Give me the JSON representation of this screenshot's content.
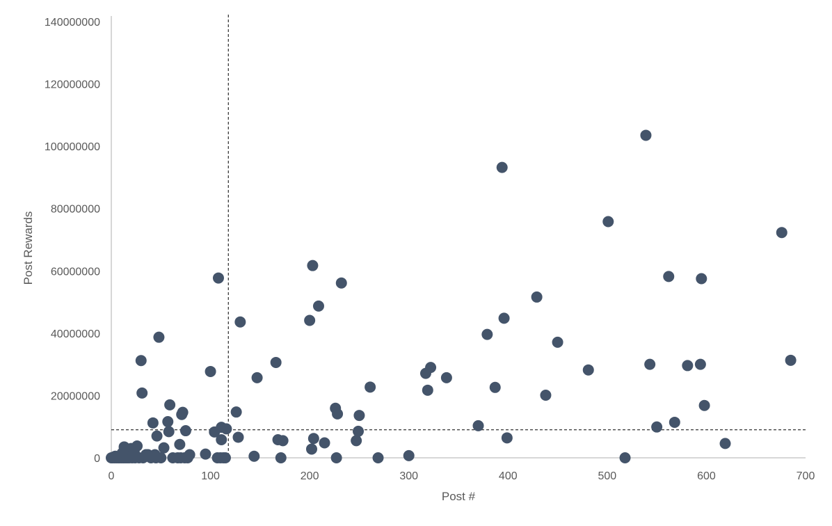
{
  "chart_data": {
    "type": "scatter",
    "title": "",
    "xlabel": "Post #",
    "ylabel": "Post Rewards",
    "xlim": [
      0,
      700
    ],
    "ylim": [
      0,
      140000000
    ],
    "x_ticks": [
      0,
      100,
      200,
      300,
      400,
      500,
      600,
      700
    ],
    "y_ticks": [
      0,
      20000000,
      40000000,
      60000000,
      80000000,
      100000000,
      120000000,
      140000000
    ],
    "x_tick_labels": [
      "0",
      "100",
      "200",
      "300",
      "400",
      "500",
      "600",
      "700"
    ],
    "y_tick_labels": [
      "0",
      "20000000",
      "40000000",
      "60000000",
      "80000000",
      "100000000",
      "120000000",
      "140000000"
    ],
    "grid": false,
    "legend": "none",
    "marker_color": "#44546a",
    "reference_lines": [
      {
        "orientation": "vertical",
        "x": 118,
        "style": "dashed"
      },
      {
        "orientation": "horizontal",
        "y": 9000000,
        "style": "dashed"
      }
    ],
    "series": [
      {
        "points": [
          [
            0,
            0
          ],
          [
            1,
            0
          ],
          [
            2,
            200000
          ],
          [
            3,
            0
          ],
          [
            4,
            500000
          ],
          [
            5,
            0
          ],
          [
            6,
            300000
          ],
          [
            7,
            0
          ],
          [
            8,
            0
          ],
          [
            9,
            400000
          ],
          [
            10,
            0
          ],
          [
            11,
            1500000
          ],
          [
            12,
            0
          ],
          [
            13,
            3500000
          ],
          [
            14,
            0
          ],
          [
            15,
            1000000
          ],
          [
            16,
            0
          ],
          [
            17,
            2500000
          ],
          [
            18,
            0
          ],
          [
            19,
            800000
          ],
          [
            20,
            3000000
          ],
          [
            21,
            0
          ],
          [
            22,
            1200000
          ],
          [
            23,
            2000000
          ],
          [
            24,
            0
          ],
          [
            25,
            500000
          ],
          [
            26,
            3800000
          ],
          [
            28,
            0
          ],
          [
            30,
            31200000
          ],
          [
            31,
            20800000
          ],
          [
            32,
            0
          ],
          [
            35,
            1000000
          ],
          [
            37,
            1000000
          ],
          [
            40,
            0
          ],
          [
            42,
            11200000
          ],
          [
            44,
            1000000
          ],
          [
            45,
            0
          ],
          [
            46,
            7000000
          ],
          [
            48,
            38700000
          ],
          [
            50,
            0
          ],
          [
            53,
            3200000
          ],
          [
            57,
            11600000
          ],
          [
            58,
            8400000
          ],
          [
            59,
            17000000
          ],
          [
            62,
            0
          ],
          [
            67,
            0
          ],
          [
            69,
            4300000
          ],
          [
            70,
            0
          ],
          [
            71,
            13900000
          ],
          [
            72,
            14600000
          ],
          [
            74,
            0
          ],
          [
            75,
            8700000
          ],
          [
            77,
            0
          ],
          [
            79,
            1000000
          ],
          [
            95,
            1200000
          ],
          [
            100,
            27700000
          ],
          [
            104,
            8300000
          ],
          [
            107,
            0
          ],
          [
            108,
            57700000
          ],
          [
            110,
            0
          ],
          [
            111,
            9800000
          ],
          [
            111,
            5800000
          ],
          [
            113,
            0
          ],
          [
            115,
            0
          ],
          [
            116,
            9300000
          ],
          [
            126,
            14700000
          ],
          [
            128,
            6600000
          ],
          [
            130,
            43600000
          ],
          [
            144,
            500000
          ],
          [
            147,
            25700000
          ],
          [
            166,
            30600000
          ],
          [
            168,
            5800000
          ],
          [
            171,
            0
          ],
          [
            173,
            5500000
          ],
          [
            200,
            44100000
          ],
          [
            202,
            2800000
          ],
          [
            203,
            61700000
          ],
          [
            204,
            6200000
          ],
          [
            209,
            48700000
          ],
          [
            215,
            4800000
          ],
          [
            226,
            15900000
          ],
          [
            227,
            0
          ],
          [
            228,
            14100000
          ],
          [
            232,
            56100000
          ],
          [
            247,
            5500000
          ],
          [
            249,
            8500000
          ],
          [
            250,
            13600000
          ],
          [
            261,
            22700000
          ],
          [
            269,
            0
          ],
          [
            300,
            700000
          ],
          [
            317,
            27100000
          ],
          [
            319,
            21700000
          ],
          [
            322,
            29000000
          ],
          [
            338,
            25700000
          ],
          [
            370,
            10300000
          ],
          [
            379,
            39600000
          ],
          [
            387,
            22600000
          ],
          [
            394,
            93200000
          ],
          [
            396,
            44800000
          ],
          [
            399,
            6400000
          ],
          [
            429,
            51600000
          ],
          [
            438,
            20100000
          ],
          [
            450,
            37100000
          ],
          [
            481,
            28200000
          ],
          [
            501,
            75800000
          ],
          [
            518,
            0
          ],
          [
            539,
            103500000
          ],
          [
            543,
            30000000
          ],
          [
            550,
            9900000
          ],
          [
            562,
            58200000
          ],
          [
            568,
            11400000
          ],
          [
            581,
            29600000
          ],
          [
            594,
            30000000
          ],
          [
            595,
            57500000
          ],
          [
            598,
            16800000
          ],
          [
            619,
            4600000
          ],
          [
            676,
            72300000
          ],
          [
            685,
            31300000
          ]
        ]
      }
    ]
  }
}
